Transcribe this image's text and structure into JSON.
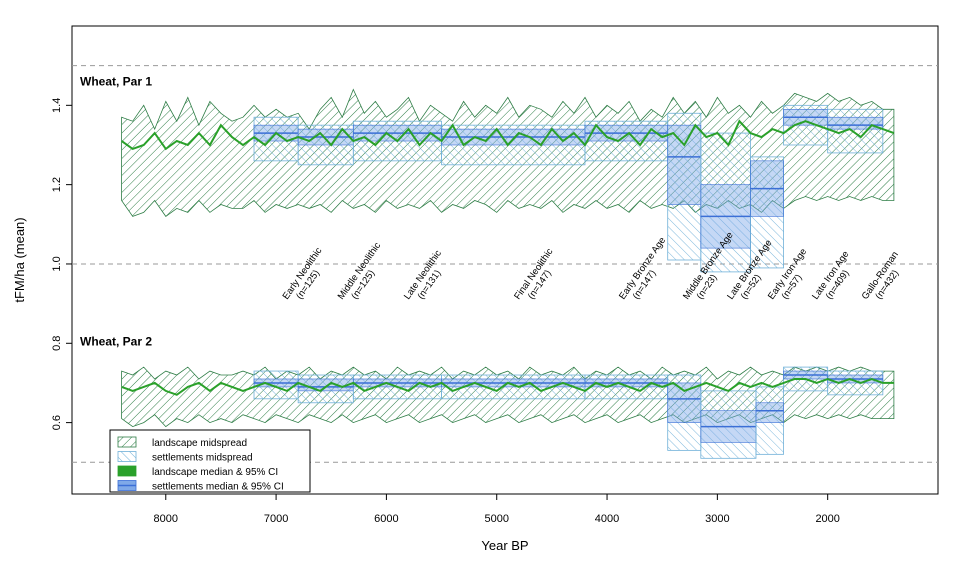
{
  "chart_data": {
    "type": "area",
    "xlabel": "Year BP",
    "ylabel": "tFM/ha (mean)",
    "xlim": [
      8850,
      1000
    ],
    "ylim": [
      0.42,
      1.6
    ],
    "x_reversed": true,
    "x_ticks": [
      8000,
      7000,
      6000,
      5000,
      4000,
      3000,
      2000
    ],
    "y_ticks": [
      0.6,
      0.8,
      1.0,
      1.2,
      1.4
    ],
    "y_tick_labels": [
      "0.6",
      "0.8",
      "1.0",
      "1.2",
      "1.4"
    ],
    "reference_lines": [
      1.5,
      1.0,
      0.5
    ],
    "panel_labels": [
      {
        "text": "Wheat, Par 1",
        "y": 1.45
      },
      {
        "text": "Wheat, Par 2",
        "y": 0.795
      }
    ],
    "period_labels": [
      {
        "name": "Early Neolithic",
        "n": "(n=125)",
        "x": 6900
      },
      {
        "name": "Middle Neolithic",
        "n": "(n=125)",
        "x": 6400
      },
      {
        "name": "Late Neolithic",
        "n": "(n=131)",
        "x": 5800
      },
      {
        "name": "Final Neolithic",
        "n": "(n=147)",
        "x": 4800
      },
      {
        "name": "Early Bronze Age",
        "n": "(n=147)",
        "x": 3850
      },
      {
        "name": "Middle Bronze Age",
        "n": "(n=23)",
        "x": 3270
      },
      {
        "name": "Late Bronze Age",
        "n": "(n=52)",
        "x": 2870
      },
      {
        "name": "Early Iron Age",
        "n": "(n=57)",
        "x": 2500
      },
      {
        "name": "Late Iron Age",
        "n": "(n=409)",
        "x": 2100
      },
      {
        "name": "Gallo-Roman",
        "n": "(n=432)",
        "x": 1650
      }
    ],
    "legend": {
      "position": "bottom-left",
      "entries": [
        {
          "label": "landscape midspread",
          "kind": "hatch",
          "color": "#2e7d46"
        },
        {
          "label": "settlements midspread",
          "kind": "hatch",
          "color": "#6fb0d8"
        },
        {
          "label": "landscape median & 95% CI",
          "kind": "solid-hatch",
          "color": "#2aa12a"
        },
        {
          "label": "settlements median & 95% CI",
          "kind": "solid-hatch",
          "color": "#3b6fd6"
        }
      ]
    },
    "colors": {
      "landscape_hatch": "#2e7d46",
      "landscape_median": "#2aa12a",
      "settlement_hatch": "#6fb0d8",
      "settlement_median": "#3b6fd6",
      "reference": "#999999"
    },
    "panels": [
      {
        "name": "Wheat, Par 1",
        "landscape": {
          "x": [
            8400,
            8300,
            8200,
            8100,
            8000,
            7900,
            7800,
            7700,
            7600,
            7500,
            7400,
            7300,
            7200,
            7100,
            7000,
            6900,
            6800,
            6700,
            6600,
            6500,
            6400,
            6300,
            6200,
            6100,
            6000,
            5900,
            5800,
            5700,
            5600,
            5500,
            5400,
            5300,
            5200,
            5100,
            5000,
            4900,
            4800,
            4700,
            4600,
            4500,
            4400,
            4300,
            4200,
            4100,
            4000,
            3900,
            3800,
            3700,
            3600,
            3500,
            3400,
            3300,
            3200,
            3100,
            3000,
            2900,
            2800,
            2700,
            2600,
            2500,
            2400,
            2300,
            2200,
            2100,
            2000,
            1900,
            1800,
            1700,
            1600,
            1500,
            1400
          ],
          "upper": [
            1.37,
            1.36,
            1.4,
            1.34,
            1.41,
            1.36,
            1.42,
            1.35,
            1.41,
            1.38,
            1.36,
            1.37,
            1.4,
            1.37,
            1.39,
            1.37,
            1.38,
            1.34,
            1.39,
            1.42,
            1.37,
            1.44,
            1.38,
            1.41,
            1.37,
            1.39,
            1.42,
            1.36,
            1.4,
            1.38,
            1.36,
            1.41,
            1.37,
            1.4,
            1.38,
            1.42,
            1.37,
            1.4,
            1.39,
            1.37,
            1.41,
            1.38,
            1.42,
            1.37,
            1.4,
            1.38,
            1.41,
            1.36,
            1.39,
            1.37,
            1.42,
            1.38,
            1.41,
            1.37,
            1.42,
            1.38,
            1.4,
            1.37,
            1.41,
            1.38,
            1.4,
            1.43,
            1.42,
            1.41,
            1.43,
            1.41,
            1.42,
            1.4,
            1.41,
            1.39,
            1.39
          ],
          "lower": [
            1.16,
            1.12,
            1.13,
            1.16,
            1.12,
            1.14,
            1.13,
            1.16,
            1.13,
            1.15,
            1.14,
            1.14,
            1.16,
            1.13,
            1.15,
            1.14,
            1.15,
            1.14,
            1.15,
            1.13,
            1.16,
            1.14,
            1.15,
            1.13,
            1.16,
            1.14,
            1.15,
            1.14,
            1.16,
            1.13,
            1.15,
            1.14,
            1.16,
            1.15,
            1.13,
            1.16,
            1.14,
            1.15,
            1.14,
            1.16,
            1.13,
            1.15,
            1.14,
            1.16,
            1.14,
            1.15,
            1.13,
            1.16,
            1.14,
            1.15,
            1.14,
            1.16,
            1.13,
            1.15,
            1.14,
            1.16,
            1.14,
            1.15,
            1.13,
            1.16,
            1.14,
            1.16,
            1.17,
            1.16,
            1.17,
            1.16,
            1.17,
            1.16,
            1.17,
            1.16,
            1.16
          ],
          "median": [
            1.31,
            1.29,
            1.3,
            1.33,
            1.29,
            1.31,
            1.3,
            1.33,
            1.3,
            1.35,
            1.32,
            1.3,
            1.32,
            1.3,
            1.33,
            1.31,
            1.32,
            1.31,
            1.33,
            1.3,
            1.34,
            1.31,
            1.32,
            1.3,
            1.33,
            1.31,
            1.34,
            1.3,
            1.33,
            1.31,
            1.35,
            1.3,
            1.32,
            1.31,
            1.34,
            1.3,
            1.33,
            1.32,
            1.3,
            1.34,
            1.31,
            1.33,
            1.3,
            1.35,
            1.32,
            1.31,
            1.33,
            1.3,
            1.34,
            1.32,
            1.33,
            1.3,
            1.35,
            1.32,
            1.33,
            1.3,
            1.36,
            1.33,
            1.32,
            1.34,
            1.33,
            1.35,
            1.36,
            1.35,
            1.34,
            1.33,
            1.34,
            1.32,
            1.35,
            1.34,
            1.33
          ]
        },
        "settlements": [
          {
            "x0": 7200,
            "x1": 6800,
            "q_low": 1.26,
            "q_high": 1.37,
            "median": 1.33,
            "ci_low": 1.31,
            "ci_high": 1.35
          },
          {
            "x0": 6800,
            "x1": 6300,
            "q_low": 1.25,
            "q_high": 1.35,
            "median": 1.32,
            "ci_low": 1.3,
            "ci_high": 1.34
          },
          {
            "x0": 6300,
            "x1": 5500,
            "q_low": 1.26,
            "q_high": 1.36,
            "median": 1.33,
            "ci_low": 1.31,
            "ci_high": 1.35
          },
          {
            "x0": 5500,
            "x1": 4200,
            "q_low": 1.25,
            "q_high": 1.35,
            "median": 1.32,
            "ci_low": 1.3,
            "ci_high": 1.34
          },
          {
            "x0": 4200,
            "x1": 3450,
            "q_low": 1.26,
            "q_high": 1.36,
            "median": 1.33,
            "ci_low": 1.31,
            "ci_high": 1.35
          },
          {
            "x0": 3450,
            "x1": 3150,
            "q_low": 1.01,
            "q_high": 1.38,
            "median": 1.27,
            "ci_low": 1.15,
            "ci_high": 1.35
          },
          {
            "x0": 3150,
            "x1": 2700,
            "q_low": 0.98,
            "q_high": 1.33,
            "median": 1.12,
            "ci_low": 1.04,
            "ci_high": 1.2
          },
          {
            "x0": 2700,
            "x1": 2400,
            "q_low": 0.99,
            "q_high": 1.27,
            "median": 1.19,
            "ci_low": 1.12,
            "ci_high": 1.26
          },
          {
            "x0": 2400,
            "x1": 2000,
            "q_low": 1.3,
            "q_high": 1.4,
            "median": 1.37,
            "ci_low": 1.35,
            "ci_high": 1.39
          },
          {
            "x0": 2000,
            "x1": 1500,
            "q_low": 1.28,
            "q_high": 1.39,
            "median": 1.35,
            "ci_low": 1.34,
            "ci_high": 1.37
          }
        ]
      },
      {
        "name": "Wheat, Par 2",
        "landscape": {
          "x": [
            8400,
            8300,
            8200,
            8100,
            8000,
            7900,
            7800,
            7700,
            7600,
            7500,
            7400,
            7300,
            7200,
            7100,
            7000,
            6900,
            6800,
            6700,
            6600,
            6500,
            6400,
            6300,
            6200,
            6100,
            6000,
            5900,
            5800,
            5700,
            5600,
            5500,
            5400,
            5300,
            5200,
            5100,
            5000,
            4900,
            4800,
            4700,
            4600,
            4500,
            4400,
            4300,
            4200,
            4100,
            4000,
            3900,
            3800,
            3700,
            3600,
            3500,
            3400,
            3300,
            3200,
            3100,
            3000,
            2900,
            2800,
            2700,
            2600,
            2500,
            2400,
            2300,
            2200,
            2100,
            2000,
            1900,
            1800,
            1700,
            1600,
            1500,
            1400
          ],
          "upper": [
            0.73,
            0.72,
            0.74,
            0.71,
            0.73,
            0.72,
            0.74,
            0.71,
            0.73,
            0.72,
            0.72,
            0.73,
            0.72,
            0.74,
            0.71,
            0.73,
            0.72,
            0.74,
            0.71,
            0.73,
            0.72,
            0.74,
            0.72,
            0.73,
            0.71,
            0.74,
            0.72,
            0.73,
            0.72,
            0.74,
            0.71,
            0.73,
            0.72,
            0.74,
            0.72,
            0.73,
            0.71,
            0.74,
            0.72,
            0.73,
            0.72,
            0.74,
            0.71,
            0.73,
            0.72,
            0.74,
            0.72,
            0.73,
            0.71,
            0.74,
            0.72,
            0.73,
            0.72,
            0.74,
            0.71,
            0.73,
            0.72,
            0.74,
            0.72,
            0.73,
            0.72,
            0.74,
            0.73,
            0.74,
            0.73,
            0.74,
            0.73,
            0.74,
            0.73,
            0.73,
            0.73
          ],
          "lower": [
            0.61,
            0.59,
            0.6,
            0.62,
            0.59,
            0.61,
            0.6,
            0.62,
            0.6,
            0.61,
            0.6,
            0.62,
            0.61,
            0.6,
            0.62,
            0.61,
            0.6,
            0.62,
            0.61,
            0.6,
            0.62,
            0.6,
            0.61,
            0.62,
            0.6,
            0.61,
            0.62,
            0.6,
            0.61,
            0.62,
            0.6,
            0.61,
            0.62,
            0.6,
            0.61,
            0.62,
            0.6,
            0.61,
            0.62,
            0.6,
            0.61,
            0.62,
            0.6,
            0.61,
            0.62,
            0.6,
            0.61,
            0.62,
            0.6,
            0.61,
            0.62,
            0.6,
            0.61,
            0.62,
            0.6,
            0.61,
            0.62,
            0.6,
            0.61,
            0.62,
            0.6,
            0.62,
            0.61,
            0.62,
            0.61,
            0.62,
            0.61,
            0.62,
            0.61,
            0.61,
            0.61
          ],
          "median": [
            0.69,
            0.68,
            0.69,
            0.7,
            0.68,
            0.67,
            0.69,
            0.7,
            0.68,
            0.7,
            0.69,
            0.68,
            0.69,
            0.7,
            0.69,
            0.68,
            0.7,
            0.69,
            0.68,
            0.7,
            0.69,
            0.7,
            0.68,
            0.69,
            0.7,
            0.69,
            0.68,
            0.7,
            0.69,
            0.7,
            0.68,
            0.69,
            0.7,
            0.69,
            0.68,
            0.7,
            0.69,
            0.7,
            0.68,
            0.69,
            0.7,
            0.69,
            0.68,
            0.7,
            0.69,
            0.7,
            0.69,
            0.68,
            0.7,
            0.69,
            0.7,
            0.68,
            0.69,
            0.7,
            0.69,
            0.68,
            0.7,
            0.69,
            0.7,
            0.69,
            0.7,
            0.71,
            0.71,
            0.7,
            0.71,
            0.7,
            0.71,
            0.7,
            0.71,
            0.7,
            0.7
          ]
        },
        "settlements": [
          {
            "x0": 7200,
            "x1": 6800,
            "q_low": 0.66,
            "q_high": 0.73,
            "median": 0.7,
            "ci_low": 0.69,
            "ci_high": 0.71
          },
          {
            "x0": 6800,
            "x1": 6300,
            "q_low": 0.65,
            "q_high": 0.72,
            "median": 0.69,
            "ci_low": 0.68,
            "ci_high": 0.71
          },
          {
            "x0": 6300,
            "x1": 5500,
            "q_low": 0.66,
            "q_high": 0.72,
            "median": 0.7,
            "ci_low": 0.69,
            "ci_high": 0.71
          },
          {
            "x0": 5500,
            "x1": 4200,
            "q_low": 0.66,
            "q_high": 0.72,
            "median": 0.7,
            "ci_low": 0.69,
            "ci_high": 0.71
          },
          {
            "x0": 4200,
            "x1": 3450,
            "q_low": 0.66,
            "q_high": 0.72,
            "median": 0.7,
            "ci_low": 0.69,
            "ci_high": 0.71
          },
          {
            "x0": 3450,
            "x1": 3150,
            "q_low": 0.53,
            "q_high": 0.72,
            "median": 0.66,
            "ci_low": 0.6,
            "ci_high": 0.7
          },
          {
            "x0": 3150,
            "x1": 2650,
            "q_low": 0.51,
            "q_high": 0.68,
            "median": 0.59,
            "ci_low": 0.55,
            "ci_high": 0.63
          },
          {
            "x0": 2650,
            "x1": 2400,
            "q_low": 0.52,
            "q_high": 0.69,
            "median": 0.63,
            "ci_low": 0.6,
            "ci_high": 0.65
          },
          {
            "x0": 2400,
            "x1": 2000,
            "q_low": 0.68,
            "q_high": 0.74,
            "median": 0.72,
            "ci_low": 0.71,
            "ci_high": 0.73
          },
          {
            "x0": 2000,
            "x1": 1500,
            "q_low": 0.67,
            "q_high": 0.73,
            "median": 0.71,
            "ci_low": 0.7,
            "ci_high": 0.72
          }
        ]
      }
    ]
  }
}
